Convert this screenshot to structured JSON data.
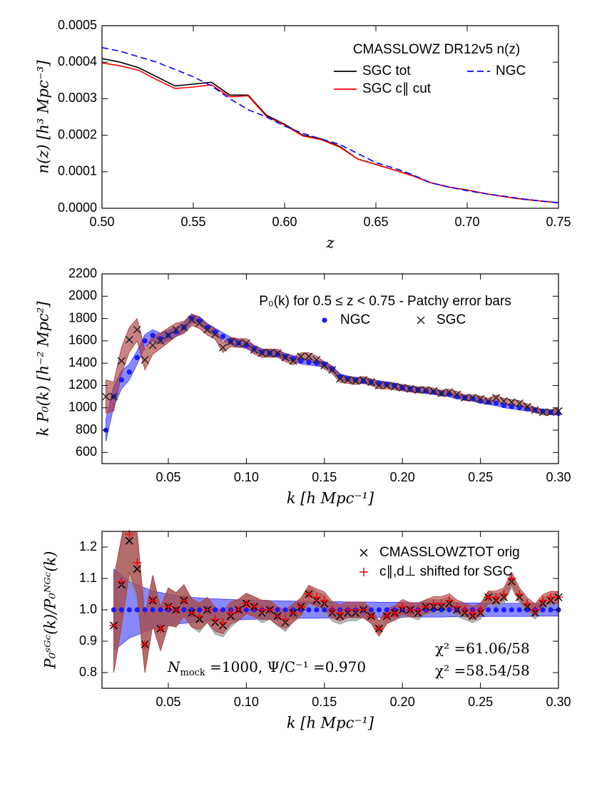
{
  "chart_data": [
    {
      "type": "line",
      "legend_title": "CMASSLOWZ DR12v5 n(z)",
      "x_label": "z",
      "y_label": "n(z)  [h³ Mpc⁻³]",
      "xlim": [
        0.5,
        0.75
      ],
      "ylim": [
        0,
        0.0005
      ],
      "grid": false,
      "xticks": [
        {
          "value": 0.5,
          "label": "0.50"
        },
        {
          "value": 0.55,
          "label": "0.55"
        },
        {
          "value": 0.6,
          "label": "0.60"
        },
        {
          "value": 0.65,
          "label": "0.65"
        },
        {
          "value": 0.7,
          "label": "0.70"
        },
        {
          "value": 0.75,
          "label": "0.75"
        }
      ],
      "yticks": [
        {
          "value": 0,
          "label": "0.0000"
        },
        {
          "value": 0.0001,
          "label": "0.0001"
        },
        {
          "value": 0.0002,
          "label": "0.0002"
        },
        {
          "value": 0.0003,
          "label": "0.0003"
        },
        {
          "value": 0.0004,
          "label": "0.0004"
        },
        {
          "value": 0.0005,
          "label": "0.0005"
        }
      ],
      "x": [
        0.5,
        0.51,
        0.52,
        0.53,
        0.54,
        0.55,
        0.56,
        0.57,
        0.58,
        0.59,
        0.6,
        0.61,
        0.62,
        0.63,
        0.64,
        0.65,
        0.66,
        0.67,
        0.68,
        0.69,
        0.7,
        0.71,
        0.72,
        0.73,
        0.74,
        0.75
      ],
      "series": [
        {
          "name": "SGC tot",
          "color": "#000000",
          "linestyle": "solid",
          "values": [
            0.00041,
            0.0004,
            0.000385,
            0.00036,
            0.000335,
            0.00034,
            0.000345,
            0.00031,
            0.00031,
            0.000255,
            0.00023,
            0.0002,
            0.00019,
            0.00017,
            0.000135,
            0.00012,
            0.000105,
            9e-05,
            7e-05,
            5.8e-05,
            5e-05,
            4e-05,
            3.2e-05,
            2.5e-05,
            2e-05,
            1.5e-05
          ]
        },
        {
          "name": "SGC c∥ cut",
          "color": "#ff0000",
          "linestyle": "solid",
          "values": [
            0.000398,
            0.00039,
            0.000378,
            0.000352,
            0.000328,
            0.000332,
            0.000338,
            0.000305,
            0.000308,
            0.000252,
            0.000228,
            0.000198,
            0.000188,
            0.000168,
            0.000135,
            0.00012,
            0.000105,
            8.9e-05,
            7e-05,
            5.8e-05,
            5e-05,
            4e-05,
            3.2e-05,
            2.5e-05,
            2e-05,
            1.5e-05
          ]
        },
        {
          "name": "NGC",
          "color": "#0000ff",
          "linestyle": "dashed",
          "values": [
            0.00044,
            0.00043,
            0.000415,
            0.0004,
            0.00038,
            0.00036,
            0.000335,
            0.0003,
            0.00027,
            0.00025,
            0.000225,
            0.000205,
            0.00019,
            0.000175,
            0.00015,
            0.000125,
            0.00011,
            9.2e-05,
            7e-05,
            5.8e-05,
            4.8e-05,
            4e-05,
            3.3e-05,
            2.6e-05,
            2e-05,
            1.5e-05
          ]
        }
      ]
    },
    {
      "type": "scatter",
      "legend_title": "P₀(k) for 0.5 ≤ z < 0.75 - Patchy error bars",
      "x_label": "k  [h Mpc⁻¹]",
      "y_label": "k P₀(k)  [h⁻² Mpc²]",
      "xlim": [
        0.0075,
        0.3
      ],
      "ylim": [
        500,
        2200
      ],
      "grid": false,
      "xticks": [
        {
          "value": 0.05,
          "label": "0.05"
        },
        {
          "value": 0.1,
          "label": "0.10"
        },
        {
          "value": 0.15,
          "label": "0.15"
        },
        {
          "value": 0.2,
          "label": "0.20"
        },
        {
          "value": 0.25,
          "label": "0.25"
        },
        {
          "value": 0.3,
          "label": "0.30"
        }
      ],
      "yticks": [
        600,
        800,
        1000,
        1200,
        1400,
        1600,
        1800,
        2000,
        2200
      ],
      "x": [
        0.01,
        0.015,
        0.02,
        0.025,
        0.03,
        0.035,
        0.04,
        0.045,
        0.05,
        0.055,
        0.06,
        0.065,
        0.07,
        0.075,
        0.08,
        0.085,
        0.09,
        0.095,
        0.1,
        0.105,
        0.11,
        0.115,
        0.12,
        0.125,
        0.13,
        0.135,
        0.14,
        0.145,
        0.15,
        0.155,
        0.16,
        0.165,
        0.17,
        0.175,
        0.18,
        0.185,
        0.19,
        0.195,
        0.2,
        0.205,
        0.21,
        0.215,
        0.22,
        0.225,
        0.23,
        0.235,
        0.24,
        0.245,
        0.25,
        0.255,
        0.26,
        0.265,
        0.27,
        0.275,
        0.28,
        0.285,
        0.29,
        0.295,
        0.3
      ],
      "series": [
        {
          "name": "NGC",
          "color": "#1a1aff",
          "band_color": "#3b3bff",
          "marker": "dot",
          "values": [
            800,
            1100,
            1250,
            1320,
            1450,
            1600,
            1650,
            1620,
            1650,
            1680,
            1720,
            1800,
            1780,
            1720,
            1680,
            1640,
            1600,
            1580,
            1560,
            1530,
            1500,
            1490,
            1480,
            1460,
            1440,
            1420,
            1410,
            1400,
            1390,
            1350,
            1280,
            1260,
            1250,
            1240,
            1230,
            1220,
            1210,
            1200,
            1180,
            1170,
            1160,
            1150,
            1140,
            1130,
            1120,
            1100,
            1090,
            1080,
            1060,
            1050,
            1040,
            1020,
            1010,
            1000,
            990,
            980,
            970,
            960,
            950
          ],
          "errors": [
            100,
            90,
            80,
            70,
            60,
            55,
            50,
            48,
            45,
            42,
            40,
            38,
            36,
            35,
            34,
            33,
            32,
            31,
            30,
            30,
            29,
            29,
            28,
            28,
            27,
            27,
            26,
            26,
            26,
            25,
            25,
            25,
            24,
            24,
            24,
            23,
            23,
            23,
            22,
            22,
            22,
            22,
            21,
            21,
            21,
            21,
            20,
            20,
            20,
            20,
            20,
            19,
            19,
            19,
            19,
            19,
            18,
            18,
            18
          ]
        },
        {
          "name": "SGC",
          "color": "#222222",
          "band_color": "#a83232",
          "marker": "x",
          "values": [
            1100,
            1100,
            1420,
            1610,
            1700,
            1430,
            1560,
            1600,
            1650,
            1700,
            1720,
            1790,
            1760,
            1700,
            1660,
            1540,
            1590,
            1580,
            1580,
            1520,
            1490,
            1490,
            1490,
            1450,
            1420,
            1460,
            1460,
            1430,
            1380,
            1340,
            1260,
            1250,
            1240,
            1250,
            1230,
            1200,
            1200,
            1190,
            1180,
            1170,
            1160,
            1160,
            1150,
            1130,
            1140,
            1120,
            1090,
            1090,
            1080,
            1060,
            1090,
            1060,
            1050,
            1040,
            1010,
            980,
            960,
            960,
            970
          ],
          "errors": [
            150,
            130,
            120,
            110,
            100,
            90,
            80,
            70,
            65,
            60,
            55,
            52,
            50,
            48,
            46,
            44,
            42,
            40,
            40,
            38,
            38,
            37,
            36,
            35,
            35,
            34,
            34,
            33,
            33,
            32,
            32,
            31,
            31,
            30,
            30,
            30,
            29,
            29,
            29,
            28,
            28,
            28,
            27,
            27,
            27,
            27,
            26,
            26,
            26,
            26,
            25,
            25,
            25,
            25,
            25,
            24,
            24,
            24,
            24
          ]
        }
      ]
    },
    {
      "type": "scatter",
      "x_label": "k  [h Mpc⁻¹]",
      "y_label": "P₀ˢᴳᶜ(k)/P₀ᴺᴳᶜ(k)",
      "xlim": [
        0.0075,
        0.3
      ],
      "ylim": [
        0.75,
        1.25
      ],
      "grid": false,
      "xticks": [
        {
          "value": 0.05,
          "label": "0.05"
        },
        {
          "value": 0.1,
          "label": "0.10"
        },
        {
          "value": 0.15,
          "label": "0.15"
        },
        {
          "value": 0.2,
          "label": "0.20"
        },
        {
          "value": 0.25,
          "label": "0.25"
        },
        {
          "value": 0.3,
          "label": "0.30"
        }
      ],
      "yticks": [
        0.8,
        0.9,
        {
          "value": 1,
          "label": "1.0"
        },
        1.1,
        1.2
      ],
      "x": [
        0.015,
        0.02,
        0.025,
        0.03,
        0.035,
        0.04,
        0.045,
        0.05,
        0.055,
        0.06,
        0.065,
        0.07,
        0.075,
        0.08,
        0.085,
        0.09,
        0.095,
        0.1,
        0.105,
        0.11,
        0.115,
        0.12,
        0.125,
        0.13,
        0.135,
        0.14,
        0.145,
        0.15,
        0.155,
        0.16,
        0.165,
        0.17,
        0.175,
        0.18,
        0.185,
        0.19,
        0.195,
        0.2,
        0.205,
        0.21,
        0.215,
        0.22,
        0.225,
        0.23,
        0.235,
        0.24,
        0.245,
        0.25,
        0.255,
        0.26,
        0.265,
        0.27,
        0.275,
        0.28,
        0.285,
        0.29,
        0.295,
        0.3
      ],
      "series": [
        {
          "color": "#1a1aff",
          "band_color": "#3b3bff",
          "marker": "dot",
          "values": [
            1,
            1,
            1,
            1,
            1,
            1,
            1,
            1,
            1,
            1,
            1,
            1,
            1,
            1,
            1,
            1,
            1,
            1,
            1,
            1,
            1,
            1,
            1,
            1,
            1,
            1,
            1,
            1,
            1,
            1,
            1,
            1,
            1,
            1,
            1,
            1,
            1,
            1,
            1,
            1,
            1,
            1,
            1,
            1,
            1,
            1,
            1,
            1,
            1,
            1,
            1,
            1,
            1,
            1,
            1,
            1,
            1,
            1
          ],
          "errors": [
            0.13,
            0.11,
            0.09,
            0.08,
            0.07,
            0.06,
            0.055,
            0.05,
            0.046,
            0.043,
            0.04,
            0.038,
            0.036,
            0.035,
            0.034,
            0.033,
            0.032,
            0.031,
            0.03,
            0.03,
            0.029,
            0.029,
            0.028,
            0.028,
            0.027,
            0.027,
            0.027,
            0.026,
            0.026,
            0.026,
            0.025,
            0.025,
            0.025,
            0.025,
            0.024,
            0.024,
            0.024,
            0.024,
            0.023,
            0.023,
            0.023,
            0.023,
            0.023,
            0.022,
            0.022,
            0.022,
            0.022,
            0.022,
            0.021,
            0.021,
            0.021,
            0.021,
            0.021,
            0.021,
            0.02,
            0.02,
            0.02,
            0.02
          ]
        },
        {
          "name": "CMASSLOWZTOT orig",
          "color": "#000000",
          "band_color": "#8a8a8a",
          "marker": "x",
          "values": [
            0.95,
            1.08,
            1.22,
            1.13,
            0.89,
            1.03,
            0.94,
            1.01,
            1,
            1.03,
            0.99,
            0.97,
            1,
            0.96,
            0.95,
            0.98,
            1,
            1.02,
            1.01,
            0.99,
            1,
            0.98,
            0.96,
            0.99,
            1.01,
            1.05,
            1.03,
            1.02,
            0.99,
            0.98,
            0.99,
            0.99,
            1,
            0.98,
            0.94,
            0.98,
            0.99,
            1,
            1,
            0.99,
            1.01,
            1.01,
            1.01,
            1.02,
            1,
            0.99,
            0.98,
            0.99,
            1.04,
            1.03,
            1.04,
            1.09,
            1.04,
            1.01,
            0.99,
            1.02,
            1.03,
            1.04
          ],
          "errors": [
            0.15,
            0.14,
            0.12,
            0.1,
            0.09,
            0.08,
            0.07,
            0.06,
            0.055,
            0.05,
            0.045,
            0.042,
            0.04,
            0.038,
            0.036,
            0.035,
            0.034,
            0.033,
            0.032,
            0.031,
            0.03,
            0.03,
            0.029,
            0.029,
            0.028,
            0.028,
            0.027,
            0.027,
            0.026,
            0.026,
            0.025,
            0.025,
            0.025,
            0.024,
            0.024,
            0.024,
            0.023,
            0.023,
            0.023,
            0.022,
            0.022,
            0.022,
            0.022,
            0.021,
            0.021,
            0.021,
            0.021,
            0.02,
            0.02,
            0.02,
            0.02,
            0.02,
            0.02,
            0.019,
            0.019,
            0.019,
            0.019,
            0.019
          ]
        },
        {
          "name": "c∥,d⊥ shifted for SGC",
          "color": "#ff0000",
          "band_color": "#b03a3a",
          "marker": "+",
          "values": [
            0.95,
            1.09,
            1.24,
            1.15,
            0.89,
            1.03,
            0.94,
            1.01,
            1,
            1.03,
            0.99,
            0.98,
            1,
            0.97,
            0.96,
            0.99,
            1,
            1.02,
            1.01,
            1,
            1,
            0.98,
            0.97,
            0.99,
            1.01,
            1.05,
            1.04,
            1.03,
            1,
            0.99,
            1,
            1,
            1,
            0.98,
            0.94,
            0.98,
            0.99,
            1.01,
            1,
            1,
            1.01,
            1.02,
            1.02,
            1.03,
            1.01,
            1,
            0.99,
            1,
            1.04,
            1.04,
            1.05,
            1.1,
            1.05,
            1.02,
            1,
            1.03,
            1.04,
            1.04
          ],
          "errors": [
            0.15,
            0.14,
            0.12,
            0.1,
            0.09,
            0.08,
            0.07,
            0.06,
            0.055,
            0.05,
            0.045,
            0.042,
            0.04,
            0.038,
            0.036,
            0.035,
            0.034,
            0.033,
            0.032,
            0.031,
            0.03,
            0.03,
            0.029,
            0.029,
            0.028,
            0.028,
            0.027,
            0.027,
            0.026,
            0.026,
            0.025,
            0.025,
            0.025,
            0.024,
            0.024,
            0.024,
            0.023,
            0.023,
            0.023,
            0.022,
            0.022,
            0.022,
            0.022,
            0.021,
            0.021,
            0.021,
            0.021,
            0.02,
            0.02,
            0.02,
            0.02,
            0.02,
            0.02,
            0.019,
            0.019,
            0.019,
            0.019,
            0.019
          ]
        }
      ],
      "annotations": [
        {
          "text": "χ² =61.06/58",
          "color": "#000000"
        },
        {
          "text": "χ² =58.54/58",
          "color": "#ff0000"
        },
        {
          "symbol": "N",
          "subscript": "mock",
          "text": " =1000, Ψ/C⁻¹ =0.970",
          "color": "#808080"
        }
      ]
    }
  ]
}
